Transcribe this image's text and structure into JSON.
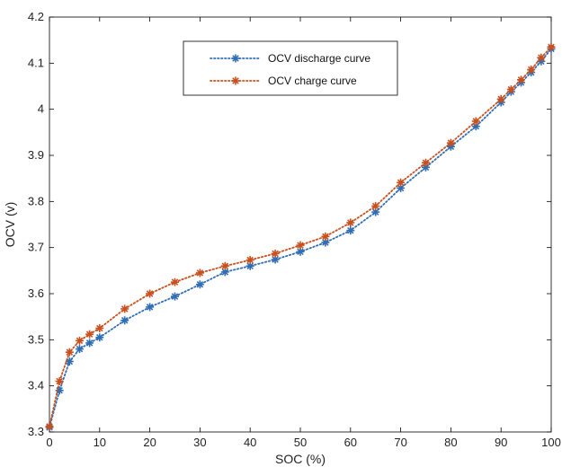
{
  "chart_data": {
    "type": "line",
    "title": "",
    "xlabel": "SOC (%)",
    "ylabel": "OCV (v)",
    "xlim": [
      0,
      100
    ],
    "ylim": [
      3.3,
      4.2
    ],
    "xticks": [
      0,
      10,
      20,
      30,
      40,
      50,
      60,
      70,
      80,
      90,
      100
    ],
    "yticks": [
      3.3,
      3.4,
      3.5,
      3.6,
      3.7,
      3.8,
      3.9,
      4,
      4.1,
      4.2
    ],
    "xtick_labels": [
      "0",
      "10",
      "20",
      "30",
      "40",
      "50",
      "60",
      "70",
      "80",
      "90",
      "100"
    ],
    "ytick_labels": [
      "3.3",
      "3.4",
      "3.5",
      "3.6",
      "3.7",
      "3.8",
      "3.9",
      "4",
      "4.1",
      "4.2"
    ],
    "grid": false,
    "legend_position": "top-center",
    "x": [
      0,
      2,
      4,
      6,
      8,
      10,
      15,
      20,
      25,
      30,
      35,
      40,
      45,
      50,
      55,
      60,
      65,
      70,
      75,
      80,
      85,
      90,
      92,
      94,
      96,
      98,
      100
    ],
    "series": [
      {
        "name": "OCV discharge curve",
        "color": "#2f6db5",
        "marker": "asterisk",
        "line_style": "dotted",
        "values": [
          3.31,
          3.39,
          3.453,
          3.48,
          3.493,
          3.505,
          3.542,
          3.571,
          3.594,
          3.62,
          3.647,
          3.66,
          3.674,
          3.691,
          3.711,
          3.737,
          3.777,
          3.829,
          3.874,
          3.919,
          3.963,
          4.015,
          4.038,
          4.058,
          4.08,
          4.104,
          4.131
        ]
      },
      {
        "name": "OCV charge curve",
        "color": "#c8501e",
        "marker": "asterisk",
        "line_style": "dotted",
        "values": [
          3.312,
          3.41,
          3.473,
          3.498,
          3.512,
          3.525,
          3.567,
          3.6,
          3.625,
          3.645,
          3.66,
          3.673,
          3.687,
          3.705,
          3.724,
          3.754,
          3.79,
          3.841,
          3.884,
          3.927,
          3.974,
          4.022,
          4.043,
          4.064,
          4.086,
          4.112,
          4.135
        ]
      }
    ]
  }
}
